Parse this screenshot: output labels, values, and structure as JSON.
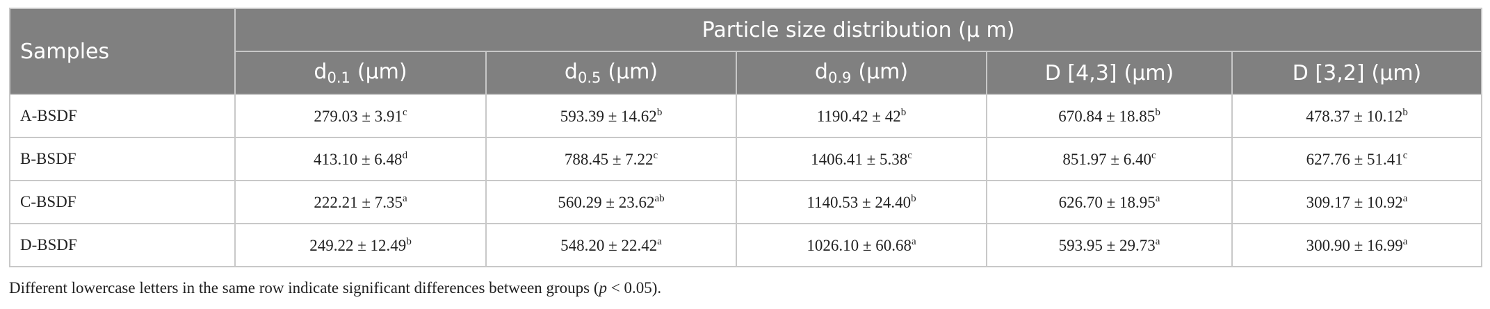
{
  "table": {
    "header": {
      "samples_label": "Samples",
      "group_label": "Particle size distribution (μ m)",
      "columns": [
        {
          "main": "d",
          "sub": "0.1",
          "unit": "(μm)"
        },
        {
          "main": "d",
          "sub": "0.5",
          "unit": "(μm)"
        },
        {
          "main": "d",
          "sub": "0.9",
          "unit": "(μm)"
        },
        {
          "main": "D [4,3]",
          "unit": "(μm)"
        },
        {
          "main": "D [3,2]",
          "unit": "(μm)"
        }
      ]
    },
    "rows": [
      {
        "sample": "A-BSDF",
        "cells": [
          {
            "value": "279.03 ± 3.91",
            "sup": "c"
          },
          {
            "value": "593.39 ± 14.62",
            "sup": "b"
          },
          {
            "value": "1190.42 ± 42",
            "sup": "b"
          },
          {
            "value": "670.84 ± 18.85",
            "sup": "b"
          },
          {
            "value": "478.37 ± 10.12",
            "sup": "b"
          }
        ]
      },
      {
        "sample": "B-BSDF",
        "cells": [
          {
            "value": "413.10 ± 6.48",
            "sup": "d"
          },
          {
            "value": "788.45 ± 7.22",
            "sup": "c"
          },
          {
            "value": "1406.41 ± 5.38",
            "sup": "c"
          },
          {
            "value": "851.97 ± 6.40",
            "sup": "c"
          },
          {
            "value": "627.76 ± 51.41",
            "sup": "c"
          }
        ]
      },
      {
        "sample": "C-BSDF",
        "cells": [
          {
            "value": "222.21 ± 7.35",
            "sup": "a"
          },
          {
            "value": "560.29 ± 23.62",
            "sup": "ab"
          },
          {
            "value": "1140.53 ± 24.40",
            "sup": "b"
          },
          {
            "value": "626.70 ± 18.95",
            "sup": "a"
          },
          {
            "value": "309.17 ± 10.92",
            "sup": "a"
          }
        ]
      },
      {
        "sample": "D-BSDF",
        "cells": [
          {
            "value": "249.22 ± 12.49",
            "sup": "b"
          },
          {
            "value": "548.20 ± 22.42",
            "sup": "a"
          },
          {
            "value": "1026.10 ± 60.68",
            "sup": "a"
          },
          {
            "value": "593.95 ± 29.73",
            "sup": "a"
          },
          {
            "value": "300.90 ± 16.99",
            "sup": "a"
          }
        ]
      }
    ]
  },
  "footnote": {
    "parts": [
      {
        "text": "Different lowercase letters in the same row indicate significant differences between groups ("
      },
      {
        "text": "p",
        "italic": true
      },
      {
        "text": " < 0.05)."
      }
    ]
  }
}
